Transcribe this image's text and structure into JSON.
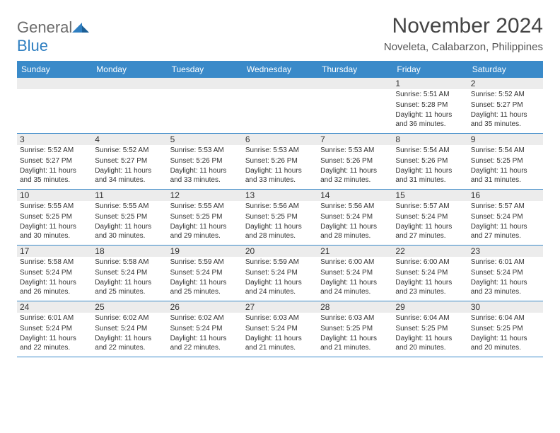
{
  "logo": {
    "part1": "General",
    "part2": "Blue"
  },
  "title": "November 2024",
  "location": "Noveleta, Calabarzon, Philippines",
  "colors": {
    "header_bg": "#3a8ac9",
    "header_text": "#ffffff",
    "row_sep": "#3a8ac9",
    "daynum_bg": "#ececec",
    "body_text": "#333333",
    "logo_gray": "#6b6b6b",
    "logo_blue": "#2f7fc1",
    "page_bg": "#ffffff"
  },
  "typography": {
    "title_fontsize": 30,
    "location_fontsize": 15,
    "dow_fontsize": 12,
    "daynum_fontsize": 12,
    "detail_fontsize": 10
  },
  "dow": [
    "Sunday",
    "Monday",
    "Tuesday",
    "Wednesday",
    "Thursday",
    "Friday",
    "Saturday"
  ],
  "weeks": [
    [
      null,
      null,
      null,
      null,
      null,
      {
        "d": "1",
        "sr": "Sunrise: 5:51 AM",
        "ss": "Sunset: 5:28 PM",
        "dl": "Daylight: 11 hours and 36 minutes."
      },
      {
        "d": "2",
        "sr": "Sunrise: 5:52 AM",
        "ss": "Sunset: 5:27 PM",
        "dl": "Daylight: 11 hours and 35 minutes."
      }
    ],
    [
      {
        "d": "3",
        "sr": "Sunrise: 5:52 AM",
        "ss": "Sunset: 5:27 PM",
        "dl": "Daylight: 11 hours and 35 minutes."
      },
      {
        "d": "4",
        "sr": "Sunrise: 5:52 AM",
        "ss": "Sunset: 5:27 PM",
        "dl": "Daylight: 11 hours and 34 minutes."
      },
      {
        "d": "5",
        "sr": "Sunrise: 5:53 AM",
        "ss": "Sunset: 5:26 PM",
        "dl": "Daylight: 11 hours and 33 minutes."
      },
      {
        "d": "6",
        "sr": "Sunrise: 5:53 AM",
        "ss": "Sunset: 5:26 PM",
        "dl": "Daylight: 11 hours and 33 minutes."
      },
      {
        "d": "7",
        "sr": "Sunrise: 5:53 AM",
        "ss": "Sunset: 5:26 PM",
        "dl": "Daylight: 11 hours and 32 minutes."
      },
      {
        "d": "8",
        "sr": "Sunrise: 5:54 AM",
        "ss": "Sunset: 5:26 PM",
        "dl": "Daylight: 11 hours and 31 minutes."
      },
      {
        "d": "9",
        "sr": "Sunrise: 5:54 AM",
        "ss": "Sunset: 5:25 PM",
        "dl": "Daylight: 11 hours and 31 minutes."
      }
    ],
    [
      {
        "d": "10",
        "sr": "Sunrise: 5:55 AM",
        "ss": "Sunset: 5:25 PM",
        "dl": "Daylight: 11 hours and 30 minutes."
      },
      {
        "d": "11",
        "sr": "Sunrise: 5:55 AM",
        "ss": "Sunset: 5:25 PM",
        "dl": "Daylight: 11 hours and 30 minutes."
      },
      {
        "d": "12",
        "sr": "Sunrise: 5:55 AM",
        "ss": "Sunset: 5:25 PM",
        "dl": "Daylight: 11 hours and 29 minutes."
      },
      {
        "d": "13",
        "sr": "Sunrise: 5:56 AM",
        "ss": "Sunset: 5:25 PM",
        "dl": "Daylight: 11 hours and 28 minutes."
      },
      {
        "d": "14",
        "sr": "Sunrise: 5:56 AM",
        "ss": "Sunset: 5:24 PM",
        "dl": "Daylight: 11 hours and 28 minutes."
      },
      {
        "d": "15",
        "sr": "Sunrise: 5:57 AM",
        "ss": "Sunset: 5:24 PM",
        "dl": "Daylight: 11 hours and 27 minutes."
      },
      {
        "d": "16",
        "sr": "Sunrise: 5:57 AM",
        "ss": "Sunset: 5:24 PM",
        "dl": "Daylight: 11 hours and 27 minutes."
      }
    ],
    [
      {
        "d": "17",
        "sr": "Sunrise: 5:58 AM",
        "ss": "Sunset: 5:24 PM",
        "dl": "Daylight: 11 hours and 26 minutes."
      },
      {
        "d": "18",
        "sr": "Sunrise: 5:58 AM",
        "ss": "Sunset: 5:24 PM",
        "dl": "Daylight: 11 hours and 25 minutes."
      },
      {
        "d": "19",
        "sr": "Sunrise: 5:59 AM",
        "ss": "Sunset: 5:24 PM",
        "dl": "Daylight: 11 hours and 25 minutes."
      },
      {
        "d": "20",
        "sr": "Sunrise: 5:59 AM",
        "ss": "Sunset: 5:24 PM",
        "dl": "Daylight: 11 hours and 24 minutes."
      },
      {
        "d": "21",
        "sr": "Sunrise: 6:00 AM",
        "ss": "Sunset: 5:24 PM",
        "dl": "Daylight: 11 hours and 24 minutes."
      },
      {
        "d": "22",
        "sr": "Sunrise: 6:00 AM",
        "ss": "Sunset: 5:24 PM",
        "dl": "Daylight: 11 hours and 23 minutes."
      },
      {
        "d": "23",
        "sr": "Sunrise: 6:01 AM",
        "ss": "Sunset: 5:24 PM",
        "dl": "Daylight: 11 hours and 23 minutes."
      }
    ],
    [
      {
        "d": "24",
        "sr": "Sunrise: 6:01 AM",
        "ss": "Sunset: 5:24 PM",
        "dl": "Daylight: 11 hours and 22 minutes."
      },
      {
        "d": "25",
        "sr": "Sunrise: 6:02 AM",
        "ss": "Sunset: 5:24 PM",
        "dl": "Daylight: 11 hours and 22 minutes."
      },
      {
        "d": "26",
        "sr": "Sunrise: 6:02 AM",
        "ss": "Sunset: 5:24 PM",
        "dl": "Daylight: 11 hours and 22 minutes."
      },
      {
        "d": "27",
        "sr": "Sunrise: 6:03 AM",
        "ss": "Sunset: 5:24 PM",
        "dl": "Daylight: 11 hours and 21 minutes."
      },
      {
        "d": "28",
        "sr": "Sunrise: 6:03 AM",
        "ss": "Sunset: 5:25 PM",
        "dl": "Daylight: 11 hours and 21 minutes."
      },
      {
        "d": "29",
        "sr": "Sunrise: 6:04 AM",
        "ss": "Sunset: 5:25 PM",
        "dl": "Daylight: 11 hours and 20 minutes."
      },
      {
        "d": "30",
        "sr": "Sunrise: 6:04 AM",
        "ss": "Sunset: 5:25 PM",
        "dl": "Daylight: 11 hours and 20 minutes."
      }
    ]
  ]
}
